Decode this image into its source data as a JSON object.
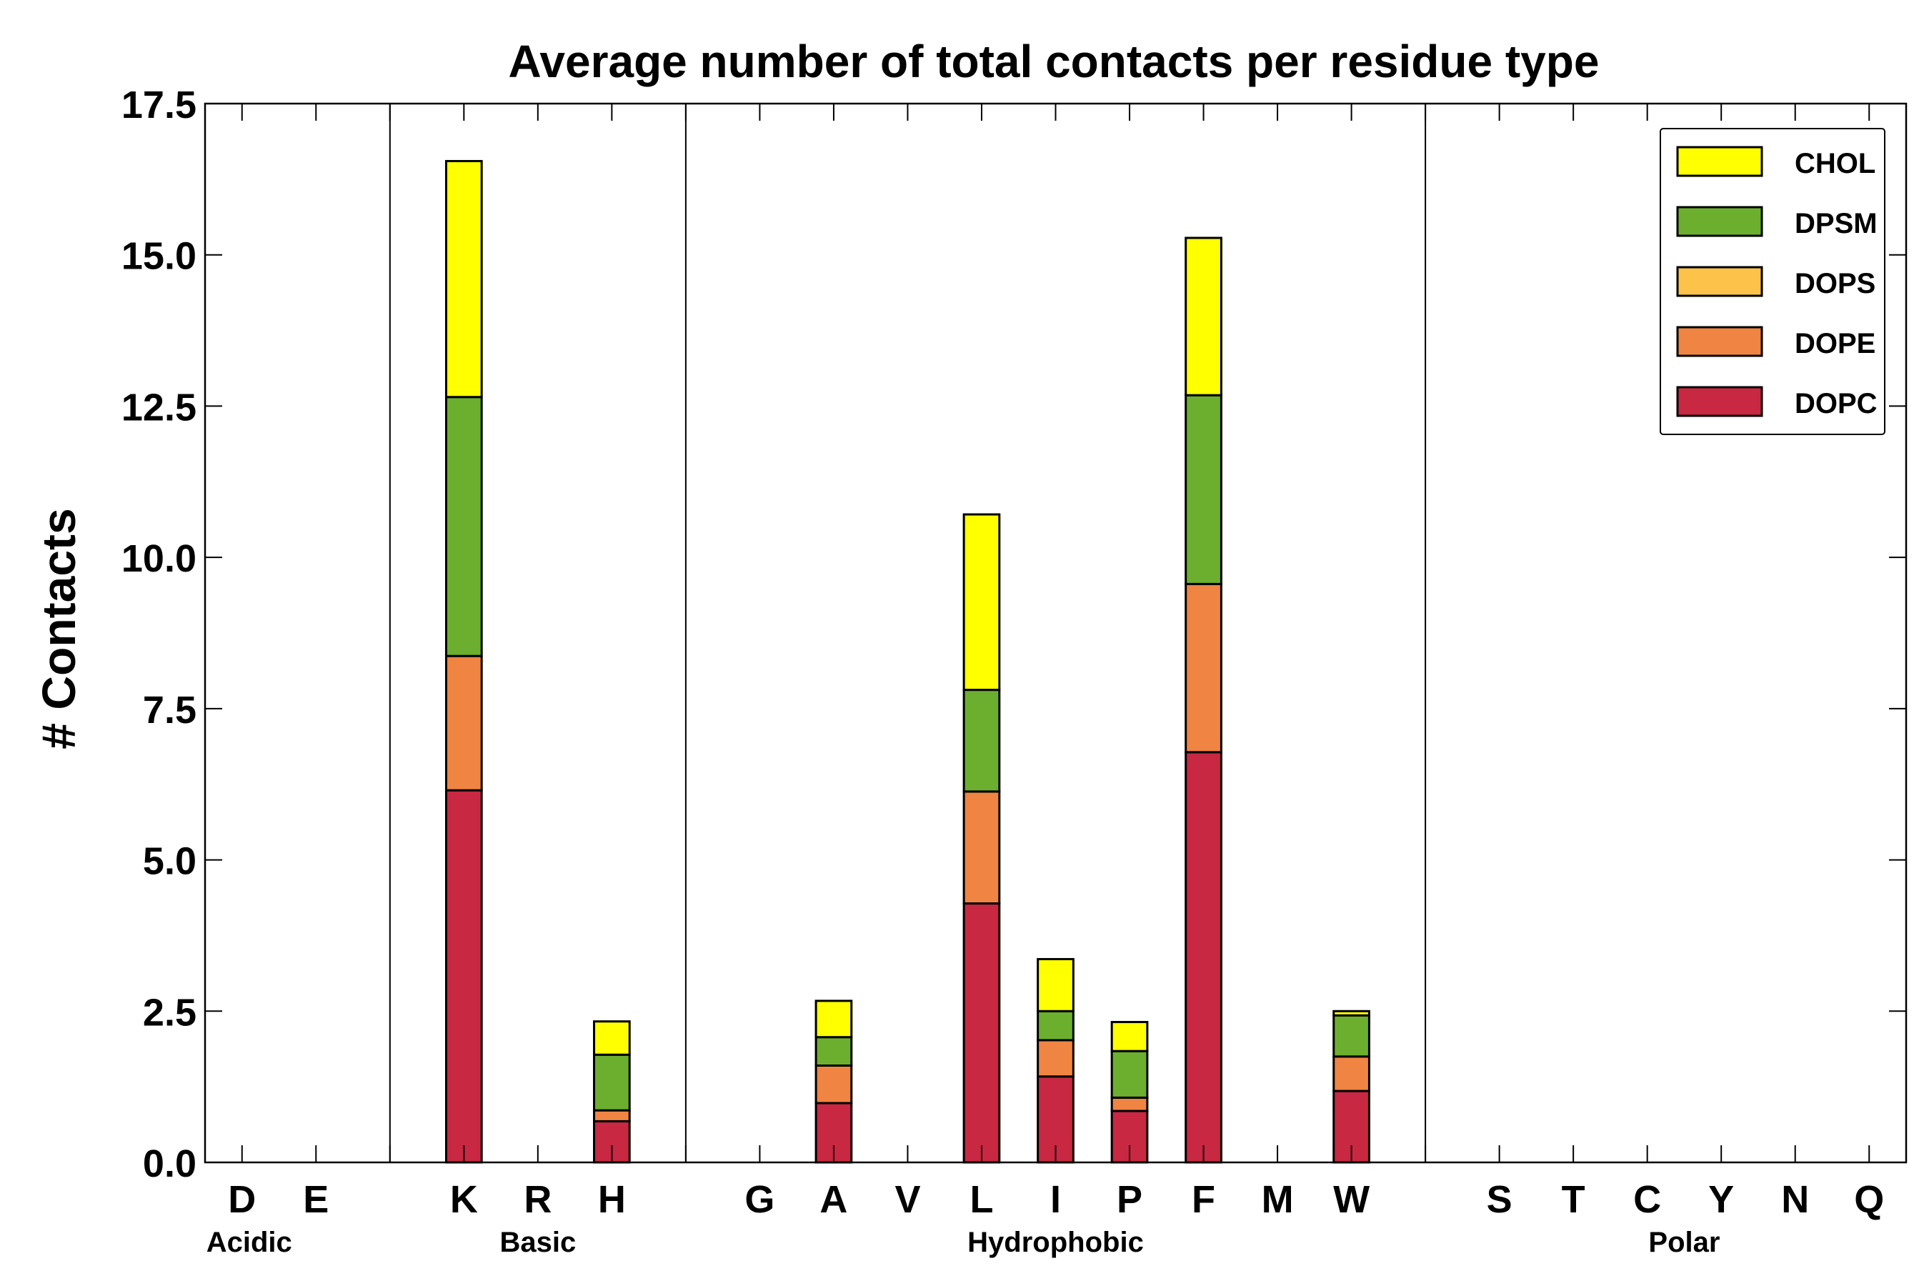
{
  "chart_data": {
    "type": "bar",
    "stacked": true,
    "title": "Average number of total contacts per residue type",
    "xlabel": "",
    "ylabel": "# Contacts",
    "ylim": [
      0,
      17.5
    ],
    "yticks": [
      "0.0",
      "2.5",
      "5.0",
      "7.5",
      "10.0",
      "12.5",
      "15.0",
      "17.5"
    ],
    "yticks_values": [
      0,
      2.5,
      5,
      7.5,
      10,
      12.5,
      15,
      17.5
    ],
    "categories": [
      "D",
      "E",
      "",
      "K",
      "R",
      "H",
      "",
      "G",
      "A",
      "V",
      "L",
      "I",
      "P",
      "F",
      "M",
      "W",
      "",
      "S",
      "T",
      "C",
      "Y",
      "N",
      "Q"
    ],
    "groups": [
      {
        "label": "Acidic",
        "members": [
          "D",
          "E"
        ]
      },
      {
        "label": "Basic",
        "members": [
          "K",
          "R",
          "H"
        ]
      },
      {
        "label": "Hydrophobic",
        "members": [
          "G",
          "A",
          "V",
          "L",
          "I",
          "P",
          "F",
          "M",
          "W"
        ]
      },
      {
        "label": "Polar",
        "members": [
          "S",
          "T",
          "C",
          "Y",
          "N",
          "Q"
        ]
      }
    ],
    "series": [
      {
        "name": "DOPC",
        "color": "#c82841",
        "values": [
          0,
          0,
          0,
          6.15,
          0,
          0.68,
          0,
          0,
          0.98,
          0,
          4.28,
          1.42,
          0.85,
          6.78,
          0,
          1.18,
          0,
          0,
          0,
          0,
          0,
          0,
          0
        ]
      },
      {
        "name": "DOPE",
        "color": "#f08442",
        "values": [
          0,
          0,
          0,
          2.22,
          0,
          0.18,
          0,
          0,
          0.62,
          0,
          1.85,
          0.6,
          0.22,
          2.78,
          0,
          0.57,
          0,
          0,
          0,
          0,
          0,
          0,
          0
        ]
      },
      {
        "name": "DOPS",
        "color": "#fcc24a",
        "values": [
          0,
          0,
          0,
          0,
          0,
          0,
          0,
          0,
          0,
          0,
          0,
          0,
          0,
          0,
          0,
          0,
          0,
          0,
          0,
          0,
          0,
          0,
          0
        ]
      },
      {
        "name": "DPSM",
        "color": "#6caf2e",
        "values": [
          0,
          0,
          0,
          4.28,
          0,
          0.92,
          0,
          0,
          0.47,
          0,
          1.68,
          0.48,
          0.77,
          3.12,
          0,
          0.68,
          0,
          0,
          0,
          0,
          0,
          0,
          0
        ]
      },
      {
        "name": "CHOL",
        "color": "#ffff00",
        "values": [
          0,
          0,
          0,
          3.9,
          0,
          0.55,
          0,
          0,
          0.6,
          0,
          2.9,
          0.86,
          0.48,
          2.6,
          0,
          0.07,
          0,
          0,
          0,
          0,
          0,
          0,
          0
        ]
      }
    ],
    "legend_order": [
      "CHOL",
      "DPSM",
      "DOPS",
      "DOPE",
      "DOPC"
    ],
    "legend_position": "top-right",
    "separators_after": [
      "",
      "",
      "",
      ""
    ],
    "grid": false
  }
}
